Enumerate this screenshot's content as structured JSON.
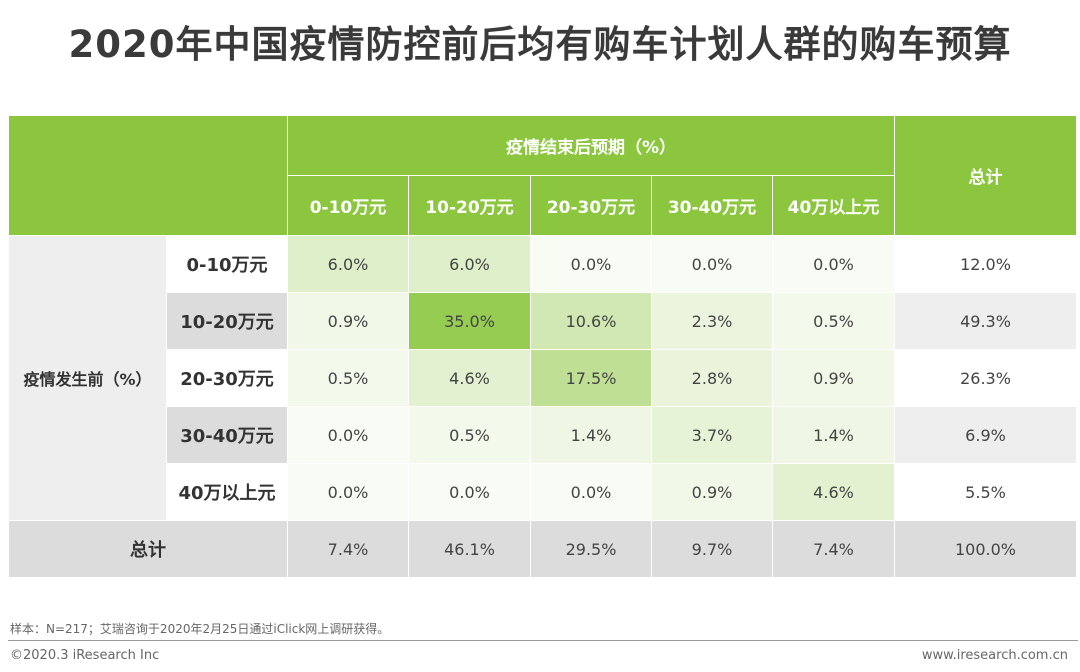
{
  "title": "2020年中国疫情防控前后均有购车计划人群的购车预算",
  "chart_data": {
    "type": "table",
    "col_group_label": "疫情结束后预期（%）",
    "row_group_label": "疫情发生前（%）",
    "total_label": "总计",
    "columns": [
      "0-10万元",
      "10-20万元",
      "20-30万元",
      "30-40万元",
      "40万以上元"
    ],
    "rows": [
      {
        "label": "0-10万元",
        "values": [
          "6.0%",
          "6.0%",
          "0.0%",
          "0.0%",
          "0.0%"
        ],
        "total": "12.0%"
      },
      {
        "label": "10-20万元",
        "values": [
          "0.9%",
          "35.0%",
          "10.6%",
          "2.3%",
          "0.5%"
        ],
        "total": "49.3%"
      },
      {
        "label": "20-30万元",
        "values": [
          "0.5%",
          "4.6%",
          "17.5%",
          "2.8%",
          "0.9%"
        ],
        "total": "26.3%"
      },
      {
        "label": "30-40万元",
        "values": [
          "0.0%",
          "0.5%",
          "1.4%",
          "3.7%",
          "1.4%"
        ],
        "total": "6.9%"
      },
      {
        "label": "40万以上元",
        "values": [
          "0.0%",
          "0.0%",
          "0.0%",
          "0.9%",
          "4.6%"
        ],
        "total": "5.5%"
      }
    ],
    "column_totals": [
      "7.4%",
      "46.1%",
      "29.5%",
      "9.7%",
      "7.4%"
    ],
    "grand_total": "100.0%",
    "highlight_color": "#8cc63f"
  },
  "footer": {
    "note": "样本：N=217；艾瑞咨询于2020年2月25日通过iClick网上调研获得。",
    "copyright": "©2020.3 iResearch Inc",
    "url": "www.iresearch.com.cn"
  }
}
